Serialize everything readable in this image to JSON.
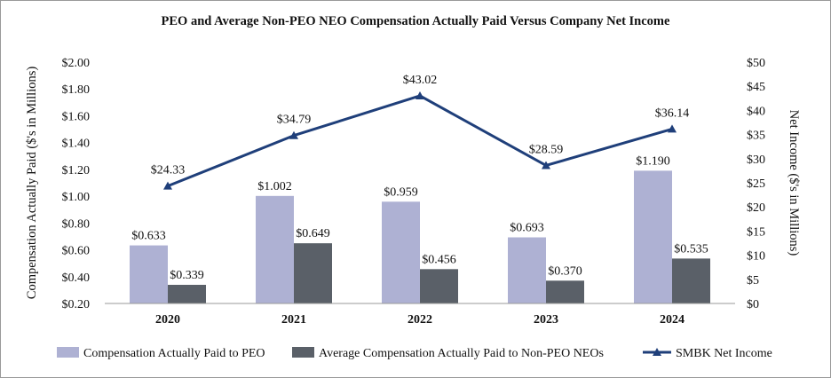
{
  "chart_data": {
    "type": "bar",
    "title": "PEO and Average Non-PEO NEO Compensation Actually Paid Versus Company Net Income",
    "categories": [
      "2020",
      "2021",
      "2022",
      "2023",
      "2024"
    ],
    "series": [
      {
        "name": "Compensation Actually Paid to PEO",
        "kind": "bar",
        "axis": "left",
        "color": "#aeb1d3",
        "values": [
          0.633,
          1.002,
          0.959,
          0.693,
          1.19
        ],
        "labels": [
          "$0.633",
          "$1.002",
          "$0.959",
          "$0.693",
          "$1.190"
        ]
      },
      {
        "name": "Average Compensation Actually Paid to Non-PEO NEOs",
        "kind": "bar",
        "axis": "left",
        "color": "#5a6068",
        "values": [
          0.339,
          0.649,
          0.456,
          0.37,
          0.535
        ],
        "labels": [
          "$0.339",
          "$0.649",
          "$0.456",
          "$0.370",
          "$0.535"
        ]
      },
      {
        "name": "SMBK Net Income",
        "kind": "line",
        "axis": "right",
        "color": "#1f3f7a",
        "values": [
          24.33,
          34.79,
          43.02,
          28.59,
          36.14
        ],
        "labels": [
          "$24.33",
          "$34.79",
          "$43.02",
          "$28.59",
          "$36.14"
        ]
      }
    ],
    "ylabel": "Compensation Actually Paid ($'s in Millions)",
    "ylim": [
      0.2,
      2.0
    ],
    "yticks": [
      0.2,
      0.4,
      0.6,
      0.8,
      1.0,
      1.2,
      1.4,
      1.6,
      1.8,
      2.0
    ],
    "ytick_labels": [
      "$0.20",
      "$0.40",
      "$0.60",
      "$0.80",
      "$1.00",
      "$1.20",
      "$1.40",
      "$1.60",
      "$1.80",
      "$2.00"
    ],
    "y2label": "Net Income ($'s in Millions)",
    "y2lim": [
      0,
      50
    ],
    "y2ticks": [
      0,
      5,
      10,
      15,
      20,
      25,
      30,
      35,
      40,
      45,
      50
    ],
    "y2tick_labels": [
      "$0",
      "$5",
      "$10",
      "$15",
      "$20",
      "$25",
      "$30",
      "$35",
      "$40",
      "$45",
      "$50"
    ],
    "grid": false,
    "legend": "bottom"
  }
}
